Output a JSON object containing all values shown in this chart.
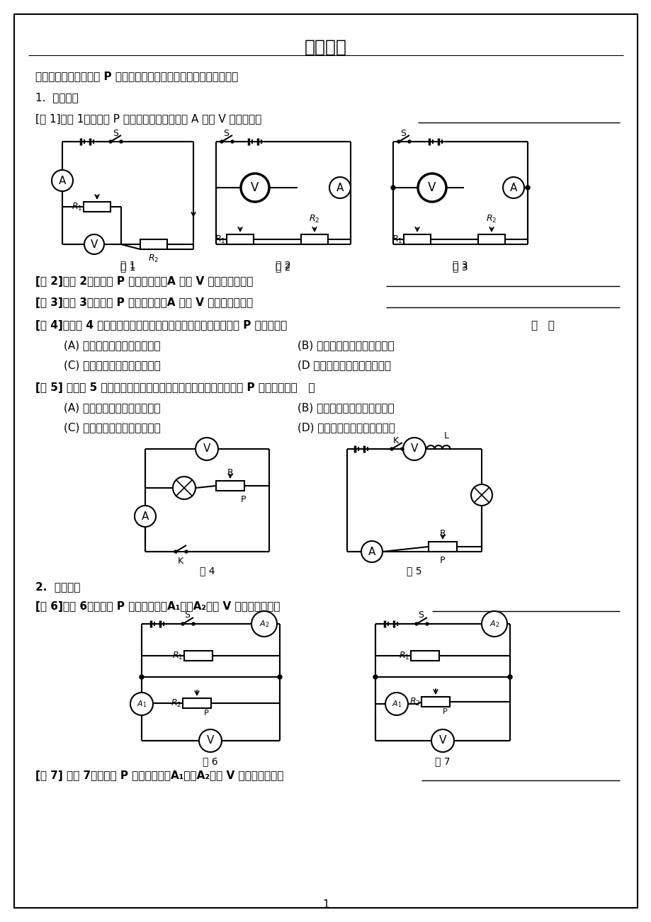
{
  "title": "动态电路",
  "section1": "一、滑动变阻器的滑片 P 的位置的变化引起电路中电学物理量的变化",
  "subsection1": "1.  串联电路",
  "ex1": "[例 1]如图 1，当滑片 P 向左移动时，请你判断 A 表和 V 表的变化。",
  "ex2": "[例 2]如图 2，当滑片 P 向左移动时，A 表和 V 表将如何变化。",
  "ex3": "[例 3]如图 3，当滑片 P 向左移动时，A 表和 V 表将如何变化。",
  "ex4": "[例 4]在如图 4 所示电路中，当闭合电键后，滑动变阻器的滑动片 P 向右移动时",
  "ex4_choice": "（   ）",
  "ex4_A": "(A) 安培表示数变大，灯变暗。",
  "ex4_B": "(B) 安培表示数变小，灯变亮。",
  "ex4_C": "(C) 伏特表示数不变，灯变亮。",
  "ex4_D": "(D 伏特表示数不变，灯变暗。",
  "ex5": "[例 5] 在如图 5 所示电路中，当闭合电键后，滑动变阻器的滑动片 P 向右移动时（   ）",
  "ex5_A": "(A) 伏特表示数变大，灯变暗。",
  "ex5_B": "(B) 伏特表示数变小，灯变亮。",
  "ex5_C": "(C) 安培表示数变小，灯变亮。",
  "ex5_D": "(D) 安培表示数不变，灯变暗。",
  "subsection2": "2.  并联电路",
  "ex6": "[例 6]如图 6，当滑片 P 向右移动时，A₁表、A₂表和 V 表将如何变化？",
  "ex7": "[例 7] 如图 7，当滑片 P 向右移动时，A₁表、A₂表和 V 表将如何变化？",
  "page_num": "1",
  "bg_color": "#ffffff",
  "text_color": "#000000"
}
